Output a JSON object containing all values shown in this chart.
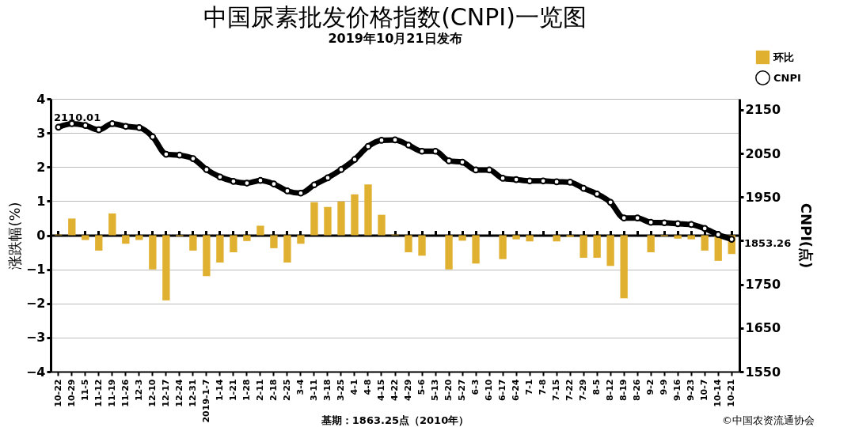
{
  "chart_data": {
    "type": "bar",
    "title": "中国尿素批发价格指数(CNPI)一览图",
    "subtitle": "2019年10月21日发布",
    "ylabel": "涨跌幅(%)",
    "y2label": "CNPI(点)",
    "categories": [
      "10-22",
      "10-29",
      "11-5",
      "11-12",
      "11-19",
      "11-26",
      "12-3",
      "12-10",
      "12-17",
      "12-24",
      "12-31",
      "2019-1-7",
      "1-14",
      "1-21",
      "1-28",
      "2-11",
      "2-18",
      "2-25",
      "3-4",
      "3-11",
      "3-18",
      "3-25",
      "4-1",
      "4-8",
      "4-15",
      "4-22",
      "4-29",
      "5-6",
      "5-13",
      "5-20",
      "5-27",
      "6-3",
      "6-10",
      "6-17",
      "6-24",
      "7-1",
      "7-8",
      "7-15",
      "7-22",
      "7-29",
      "8-5",
      "8-12",
      "8-19",
      "8-26",
      "9-2",
      "9-9",
      "9-16",
      "9-23",
      "10-7",
      "10-14",
      "10-21"
    ],
    "series": [
      {
        "name": "环比",
        "color": "#e0b030",
        "values": [
          0.02,
          0.49,
          -0.14,
          -0.45,
          0.64,
          -0.25,
          -0.14,
          -1.0,
          -1.91,
          -0.03,
          -0.45,
          -1.2,
          -0.8,
          -0.5,
          -0.17,
          0.28,
          -0.38,
          -0.8,
          -0.25,
          0.97,
          0.83,
          0.99,
          1.2,
          1.49,
          0.6,
          0.02,
          -0.5,
          -0.6,
          0.0,
          -1.0,
          -0.16,
          -0.83,
          0.0,
          -0.7,
          -0.12,
          -0.18,
          0.0,
          -0.18,
          -0.05,
          -0.66,
          -0.66,
          -0.9,
          -1.85,
          0.0,
          -0.5,
          -0.03,
          -0.1,
          -0.12,
          -0.45,
          -0.75,
          -0.55
        ]
      },
      {
        "name": "CNPI",
        "type": "line",
        "axis": "y2",
        "color": "#000000",
        "marker": "circle",
        "values": [
          2110.01,
          2118,
          2114,
          2104,
          2118,
          2112,
          2109,
          2088,
          2048,
          2046,
          2038,
          2013,
          1996,
          1986,
          1982,
          1988,
          1980,
          1964,
          1959,
          1978,
          1994,
          2013,
          2036,
          2066,
          2080,
          2081,
          2069,
          2055,
          2055,
          2033,
          2030,
          2012,
          2012,
          1993,
          1990,
          1987,
          1987,
          1985,
          1984,
          1970,
          1957,
          1938,
          1902,
          1902,
          1892,
          1891,
          1889,
          1887,
          1878,
          1864,
          1853.26
        ]
      }
    ],
    "ylim": [
      -4,
      4
    ],
    "yticks": [
      -4,
      -3,
      -2,
      -1,
      0,
      1,
      2,
      3,
      4
    ],
    "y2lim": [
      1550,
      2175
    ],
    "y2ticks": [
      1550,
      1650,
      1750,
      {
        "value": 1850,
        "label": null
      },
      1950,
      2050,
      2150
    ],
    "grid": "y",
    "legend": "top right",
    "annotations": [
      "2110.01",
      "1853.26",
      "基期：1863.25点（2010年）",
      "©中国农资流通协会"
    ]
  }
}
